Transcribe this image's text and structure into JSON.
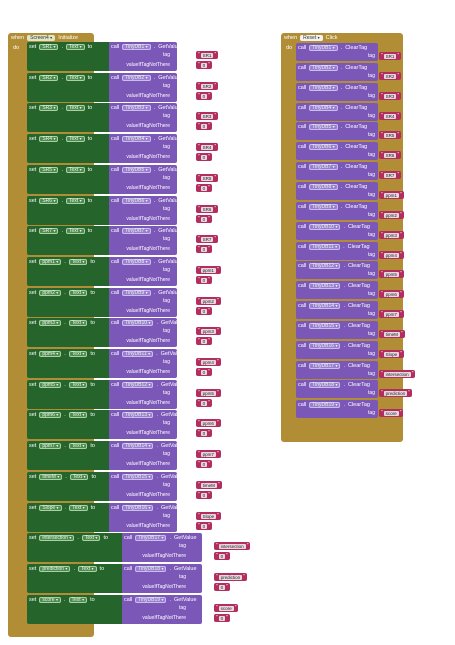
{
  "keywords": {
    "when": "when",
    "do": "do",
    "set": "set",
    "to": "to",
    "call": "call",
    "tag": "tag",
    "value_if": "valueIfTagNotThere",
    "sep": "."
  },
  "init_event": {
    "component": "Screen4",
    "event": "Initialize"
  },
  "click_event": {
    "component": "Reset",
    "event": "Click"
  },
  "get_method": "GetValue",
  "clear_method": "ClearTag",
  "prop": "Text",
  "default_value": "0",
  "init_rows": [
    {
      "label": "SR1",
      "db": "TinyDB1",
      "tag": "SR1"
    },
    {
      "label": "SR2",
      "db": "TinyDB2",
      "tag": "SR2"
    },
    {
      "label": "SR3",
      "db": "TinyDB3",
      "tag": "SR3"
    },
    {
      "label": "SR4",
      "db": "TinyDB4",
      "tag": "SR4"
    },
    {
      "label": "SR5",
      "db": "TinyDB5",
      "tag": "SR5"
    },
    {
      "label": "SR6",
      "db": "TinyDB6",
      "tag": "SR6"
    },
    {
      "label": "SR7",
      "db": "TinyDB7",
      "tag": "SR7"
    },
    {
      "label": "ppm1",
      "db": "TinyDB8",
      "tag": "ppm1"
    },
    {
      "label": "ppm2",
      "db": "TinyDB9",
      "tag": "ppm2"
    },
    {
      "label": "ppm3",
      "db": "TinyDB10",
      "tag": "ppm3"
    },
    {
      "label": "ppm4",
      "db": "TinyDB11",
      "tag": "ppm4"
    },
    {
      "label": "ppm5",
      "db": "TinyDB12",
      "tag": "ppm5"
    },
    {
      "label": "ppm6",
      "db": "TinyDB13",
      "tag": "ppm6"
    },
    {
      "label": "ppm7",
      "db": "TinyDB14",
      "tag": "ppm7"
    },
    {
      "label": "timeM",
      "db": "TinyDB15",
      "tag": "timeM"
    },
    {
      "label": "Slope",
      "db": "TinyDB16",
      "tag": "Slope"
    },
    {
      "label": "intersection",
      "db": "TinyDB17",
      "tag": "intersection"
    },
    {
      "label": "prediction",
      "db": "TinyDB18",
      "tag": "prediction"
    },
    {
      "label": "score",
      "db": "TinyDB19",
      "tag": "score"
    }
  ],
  "clear_rows": [
    {
      "db": "TinyDB1",
      "tag": "SR1"
    },
    {
      "db": "TinyDB2",
      "tag": "SR2"
    },
    {
      "db": "TinyDB3",
      "tag": "SR3"
    },
    {
      "db": "TinyDB4",
      "tag": "SR4"
    },
    {
      "db": "TinyDB5",
      "tag": "SR5"
    },
    {
      "db": "TinyDB6",
      "tag": "SR6"
    },
    {
      "db": "TinyDB7",
      "tag": "SR7"
    },
    {
      "db": "TinyDB8",
      "tag": "ppm1"
    },
    {
      "db": "TinyDB9",
      "tag": "ppm2"
    },
    {
      "db": "TinyDB10",
      "tag": "ppm3"
    },
    {
      "db": "TinyDB11",
      "tag": "ppm4"
    },
    {
      "db": "TinyDB12",
      "tag": "ppm5"
    },
    {
      "db": "TinyDB13",
      "tag": "ppm6"
    },
    {
      "db": "TinyDB14",
      "tag": "ppm7"
    },
    {
      "db": "TinyDB15",
      "tag": "timeM"
    },
    {
      "db": "TinyDB16",
      "tag": "Slope"
    },
    {
      "db": "TinyDB17",
      "tag": "intersection"
    },
    {
      "db": "TinyDB18",
      "tag": "prediction"
    },
    {
      "db": "TinyDB19",
      "tag": "score"
    }
  ],
  "colors": {
    "event": "#b18e35",
    "setter": "#25652b",
    "tinydb": "#7b58b8",
    "text": "#b32d5e"
  }
}
